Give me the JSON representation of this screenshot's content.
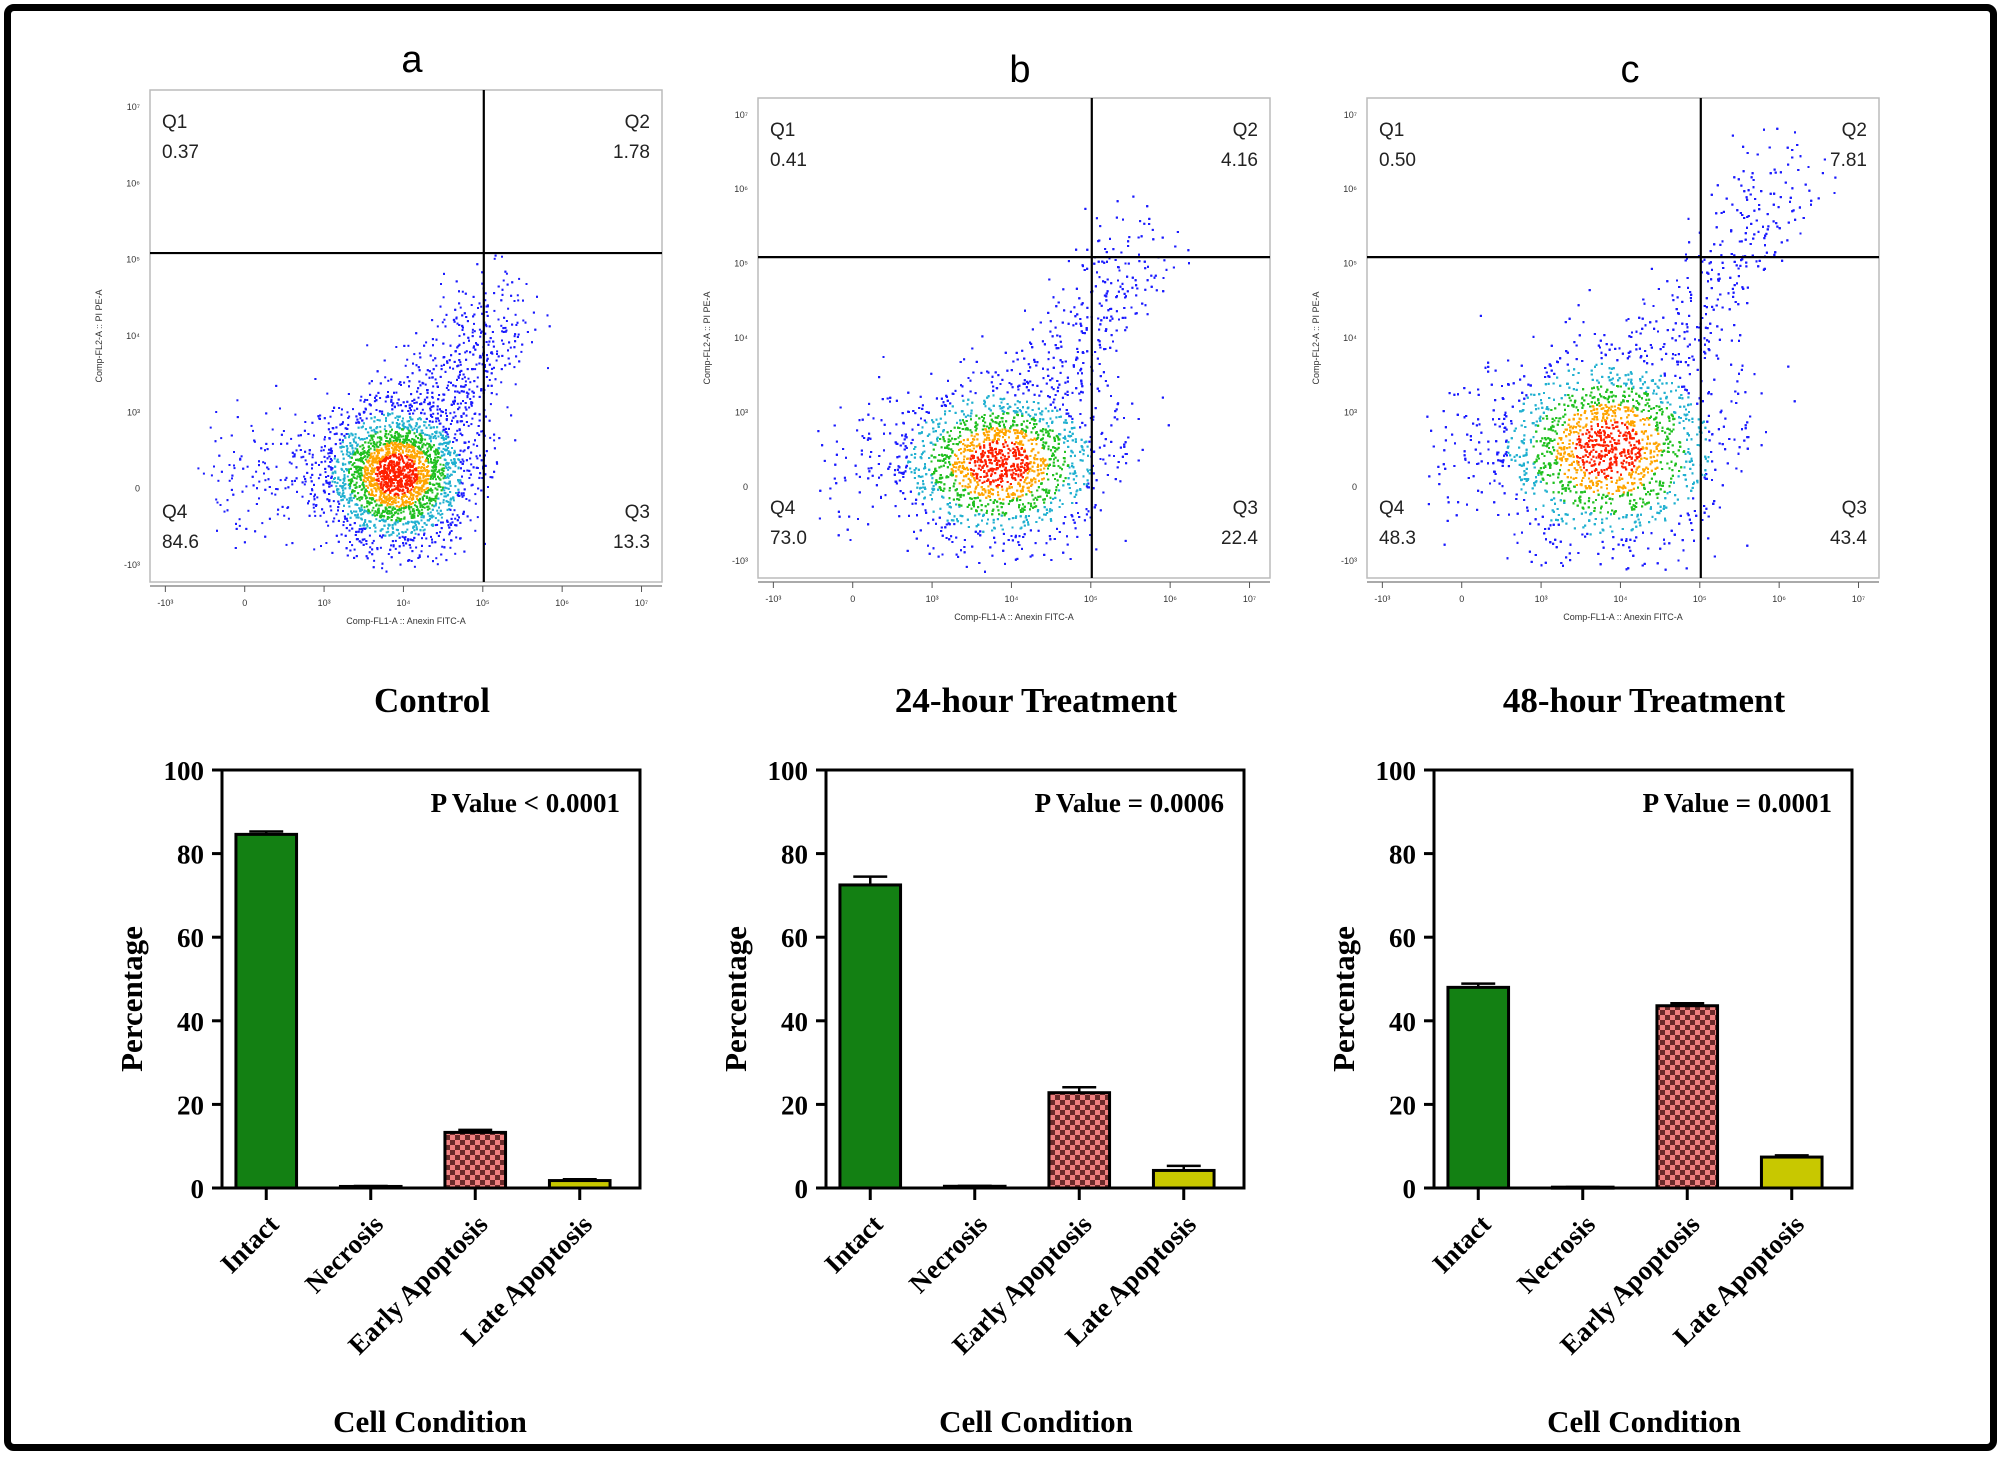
{
  "colors": {
    "intact": "#138013",
    "necrosis": "#2b5c2b",
    "early_apoptosis_fill": "#f08080",
    "early_apoptosis_check": "#6b2a2a",
    "late_apoptosis": "#c8c800",
    "scatter_low": "#1a1aff",
    "scatter_mid": "#20c020",
    "scatter_high": "#ff2000",
    "axis": "#000000"
  },
  "flow_panels": [
    {
      "panel_label": "a",
      "q1_label": "Q1",
      "q1_value": "0.37",
      "q2_label": "Q2",
      "q2_value": "1.78",
      "q3_label": "Q3",
      "q3_value": "13.3",
      "q4_label": "Q4",
      "q4_value": "84.6",
      "xlabel": "Comp-FL1-A :: Anexin FITC-A",
      "ylabel": "Comp-FL2-A :: PI PE-A",
      "x_ticks": [
        "-10³",
        "0",
        "10³",
        "10⁴",
        "10⁵",
        "10⁶",
        "10⁷"
      ],
      "y_ticks": [
        "10⁷",
        "10⁶",
        "10⁵",
        "10⁴",
        "10³",
        "0",
        "-10³"
      ],
      "gate_x_decade": 4.35,
      "gate_y_decade": 4.45
    },
    {
      "panel_label": "b",
      "q1_label": "Q1",
      "q1_value": "0.41",
      "q2_label": "Q2",
      "q2_value": "4.16",
      "q3_label": "Q3",
      "q3_value": "22.4",
      "q4_label": "Q4",
      "q4_value": "73.0",
      "xlabel": "Comp-FL1-A :: Anexin FITC-A",
      "ylabel": "Comp-FL2-A :: PI PE-A",
      "x_ticks": [
        "-10³",
        "0",
        "10³",
        "10⁴",
        "10⁵",
        "10⁶",
        "10⁷"
      ],
      "y_ticks": [
        "10⁷",
        "10⁶",
        "10⁵",
        "10⁴",
        "10³",
        "0",
        "-10³"
      ],
      "gate_x_decade": 4.35,
      "gate_y_decade": 4.45
    },
    {
      "panel_label": "c",
      "q1_label": "Q1",
      "q1_value": "0.50",
      "q2_label": "Q2",
      "q2_value": "7.81",
      "q3_label": "Q3",
      "q3_value": "43.4",
      "q4_label": "Q4",
      "q4_value": "48.3",
      "xlabel": "Comp-FL1-A :: Anexin FITC-A",
      "ylabel": "Comp-FL2-A :: PI PE-A",
      "x_ticks": [
        "-10³",
        "0",
        "10³",
        "10⁴",
        "10⁵",
        "10⁶",
        "10⁷"
      ],
      "y_ticks": [
        "10⁷",
        "10⁶",
        "10⁵",
        "10⁴",
        "10³",
        "0",
        "-10³"
      ],
      "gate_x_decade": 4.35,
      "gate_y_decade": 4.45
    }
  ],
  "chart_data": [
    {
      "type": "scatter",
      "title": "a",
      "xlabel": "Comp-FL1-A :: Anexin FITC-A",
      "ylabel": "Comp-FL2-A :: PI PE-A",
      "x_scale": "biexponential",
      "quadrants": {
        "Q1": 0.37,
        "Q2": 1.78,
        "Q3": 13.3,
        "Q4": 84.6
      }
    },
    {
      "type": "scatter",
      "title": "b",
      "xlabel": "Comp-FL1-A :: Anexin FITC-A",
      "ylabel": "Comp-FL2-A :: PI PE-A",
      "x_scale": "biexponential",
      "quadrants": {
        "Q1": 0.41,
        "Q2": 4.16,
        "Q3": 22.4,
        "Q4": 73.0
      }
    },
    {
      "type": "scatter",
      "title": "c",
      "xlabel": "Comp-FL1-A :: Anexin FITC-A",
      "ylabel": "Comp-FL2-A :: PI PE-A",
      "x_scale": "biexponential",
      "quadrants": {
        "Q1": 0.5,
        "Q2": 7.81,
        "Q3": 43.4,
        "Q4": 48.3
      }
    },
    {
      "type": "bar",
      "title": "Control",
      "annotation": "P Value < 0.0001",
      "categories": [
        "Intact",
        "Necrosis",
        "Early Apoptosis",
        "Late Apoptosis"
      ],
      "values": [
        84.6,
        0.37,
        13.3,
        1.78
      ],
      "errors": [
        0.7,
        0.1,
        0.6,
        0.3
      ],
      "xlabel": "Cell Condition",
      "ylabel": "Percentage",
      "ylim": [
        0,
        100
      ],
      "yticks": [
        0,
        20,
        40,
        60,
        80,
        100
      ]
    },
    {
      "type": "bar",
      "title": "24-hour Treatment",
      "annotation": "P Value = 0.0006",
      "categories": [
        "Intact",
        "Necrosis",
        "Early Apoptosis",
        "Late Apoptosis"
      ],
      "values": [
        72.5,
        0.41,
        22.8,
        4.2
      ],
      "errors": [
        2.0,
        0.1,
        1.3,
        1.1
      ],
      "xlabel": "Cell Condition",
      "ylabel": "Percentage",
      "ylim": [
        0,
        100
      ],
      "yticks": [
        0,
        20,
        40,
        60,
        80,
        100
      ]
    },
    {
      "type": "bar",
      "title": "48-hour Treatment",
      "annotation": "P Value = 0.0001",
      "categories": [
        "Intact",
        "Necrosis",
        "Early Apoptosis",
        "Late Apoptosis"
      ],
      "values": [
        48.0,
        0.2,
        43.6,
        7.4
      ],
      "errors": [
        0.9,
        0.05,
        0.6,
        0.4
      ],
      "xlabel": "Cell Condition",
      "ylabel": "Percentage",
      "ylim": [
        0,
        100
      ],
      "yticks": [
        0,
        20,
        40,
        60,
        80,
        100
      ]
    }
  ]
}
